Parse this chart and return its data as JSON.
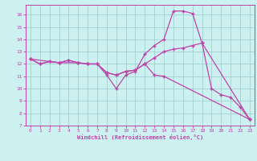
{
  "title": "",
  "xlabel": "Windchill (Refroidissement éolien,°C)",
  "bg_color": "#cdf0f0",
  "line_color": "#bb44aa",
  "xlim": [
    -0.5,
    23.5
  ],
  "ylim": [
    7,
    16.8
  ],
  "yticks": [
    7,
    8,
    9,
    10,
    11,
    12,
    13,
    14,
    15,
    16
  ],
  "xticks": [
    0,
    1,
    2,
    3,
    4,
    5,
    6,
    7,
    8,
    9,
    10,
    11,
    12,
    13,
    14,
    15,
    16,
    17,
    18,
    19,
    20,
    21,
    22,
    23
  ],
  "line1_x": [
    0,
    1,
    2,
    3,
    4,
    5,
    6,
    7,
    8,
    9,
    10,
    11,
    12,
    13,
    14,
    15,
    16,
    17,
    18,
    19,
    20,
    21,
    22,
    23
  ],
  "line1_y": [
    12.4,
    12.0,
    12.2,
    12.1,
    12.3,
    12.1,
    12.0,
    12.0,
    11.1,
    10.0,
    11.1,
    11.4,
    12.8,
    13.5,
    14.0,
    16.3,
    16.3,
    16.1,
    13.7,
    10.0,
    9.5,
    9.3,
    8.5,
    7.5
  ],
  "line2_x": [
    0,
    1,
    2,
    3,
    4,
    5,
    6,
    7,
    8,
    9,
    10,
    11,
    12,
    13,
    14,
    15,
    16,
    17,
    18,
    23
  ],
  "line2_y": [
    12.4,
    12.0,
    12.2,
    12.1,
    12.3,
    12.1,
    12.0,
    12.0,
    11.3,
    11.1,
    11.4,
    11.5,
    12.0,
    12.5,
    13.0,
    13.2,
    13.3,
    13.5,
    13.7,
    7.5
  ],
  "line3_x": [
    0,
    3,
    5,
    6,
    7,
    8,
    9,
    10,
    11,
    12,
    13,
    14,
    23
  ],
  "line3_y": [
    12.4,
    12.1,
    12.1,
    12.0,
    12.0,
    11.3,
    11.1,
    11.4,
    11.5,
    12.0,
    11.1,
    11.0,
    7.5
  ],
  "grid_color": "#99cccc",
  "marker": "+"
}
